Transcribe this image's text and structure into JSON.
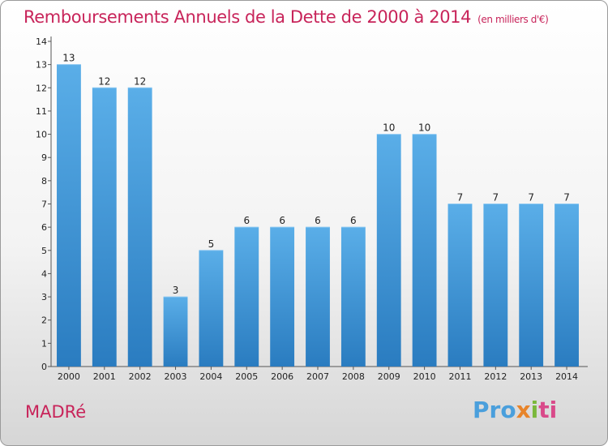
{
  "chart_data": {
    "type": "bar",
    "title": "Remboursements Annuels de la Dette de 2000 à 2014",
    "subtitle": "(en milliers d'€)",
    "categories": [
      "2000",
      "2001",
      "2002",
      "2003",
      "2004",
      "2005",
      "2006",
      "2007",
      "2008",
      "2009",
      "2010",
      "2011",
      "2012",
      "2013",
      "2014"
    ],
    "values": [
      13,
      12,
      12,
      3,
      5,
      6,
      6,
      6,
      6,
      10,
      10,
      7,
      7,
      7,
      7
    ],
    "data_labels": [
      "13",
      "12",
      "12",
      "3",
      "5",
      "6",
      "6",
      "6",
      "6",
      "10",
      "10",
      "7",
      "7",
      "7",
      "7"
    ],
    "y_ticks": [
      "0",
      "1",
      "2",
      "3",
      "4",
      "5",
      "6",
      "7",
      "8",
      "9",
      "10",
      "11",
      "12",
      "13",
      "14"
    ],
    "ylim": [
      0,
      14
    ],
    "xlabel": "",
    "ylabel": "",
    "bar_color_top": "#5aaee8",
    "bar_color_bottom": "#2a7cc0"
  },
  "footer": {
    "town": "MADRé",
    "logo": {
      "p1": "Pro",
      "p2": "x",
      "p3": "i",
      "p4": "ti"
    }
  },
  "colors": {
    "accent": "#c8245a"
  }
}
